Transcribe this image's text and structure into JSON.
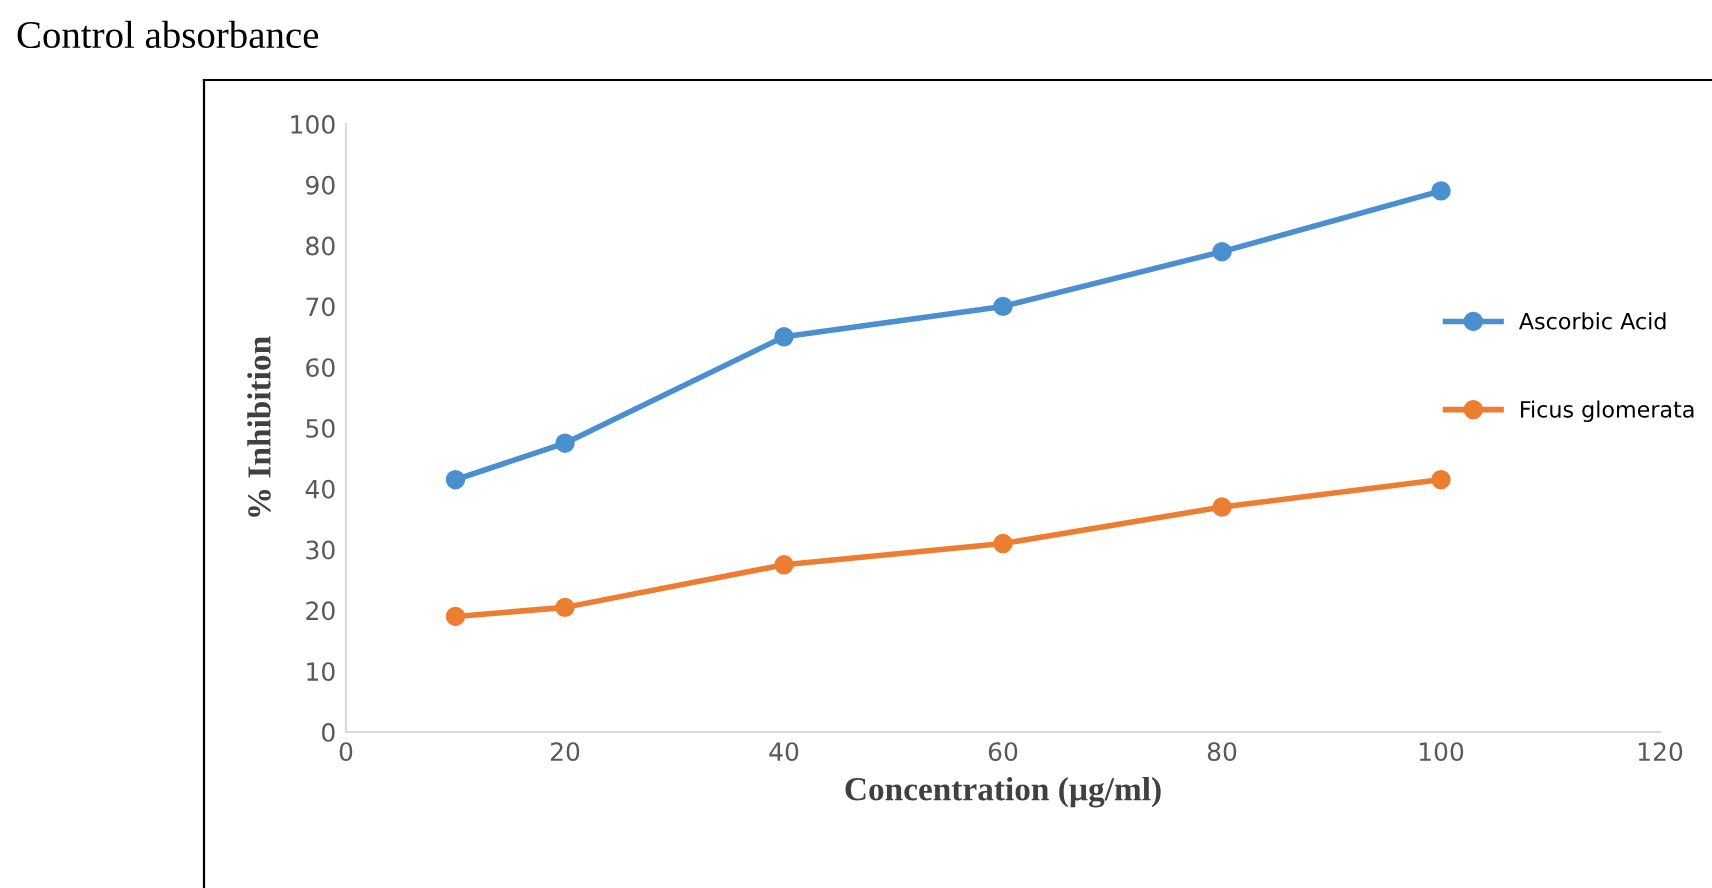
{
  "chart_data": {
    "type": "line",
    "xlabel": "Concentration (µg/ml)",
    "ylabel": "% Inhibition",
    "annotations": [
      "Control absorbance"
    ],
    "x": [
      10,
      20,
      40,
      60,
      80,
      100
    ],
    "series": [
      {
        "name": "Ascorbic Acid",
        "color": "#4a8fcf",
        "values": [
          41.5,
          47.5,
          65,
          70,
          79,
          89
        ]
      },
      {
        "name": "Ficus glomerata",
        "color": "#ed7d31",
        "values": [
          19,
          20.5,
          27.5,
          31,
          37,
          41.5
        ]
      }
    ],
    "xlim": [
      0,
      120
    ],
    "xticks": [
      0,
      20,
      40,
      60,
      80,
      100,
      120
    ],
    "ylim": [
      0,
      100
    ],
    "yticks": [
      0,
      10,
      20,
      30,
      40,
      50,
      60,
      70,
      80,
      90,
      100
    ],
    "grid": false,
    "legend": "right",
    "marker": "circle",
    "line_style": "solid"
  }
}
